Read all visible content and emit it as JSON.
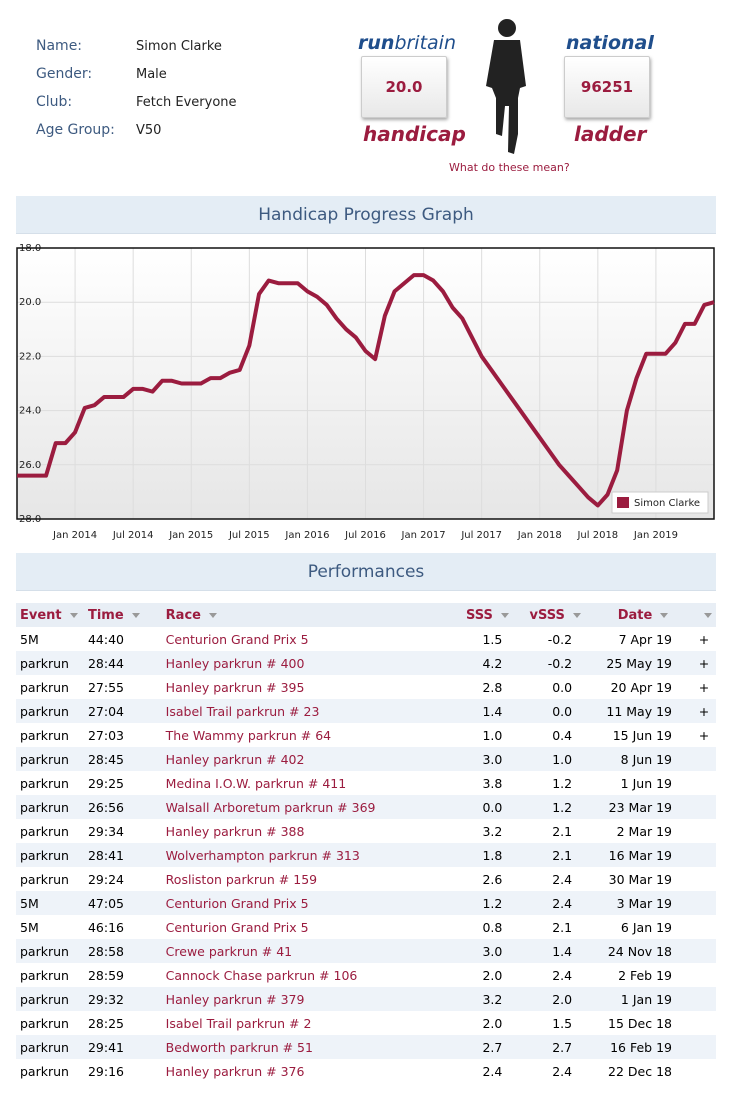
{
  "profile": {
    "fields": [
      {
        "label": "Name:",
        "value": "Simon Clarke"
      },
      {
        "label": "Gender:",
        "value": "Male"
      },
      {
        "label": "Club:",
        "value": "Fetch Everyone"
      },
      {
        "label": "Age Group:",
        "value": "V50"
      }
    ]
  },
  "badges": {
    "handicap": {
      "logo_a": "run",
      "logo_b": "britain",
      "value": "20.0",
      "caption": "handicap"
    },
    "ladder": {
      "logo": "national",
      "value": "96251",
      "caption": "ladder"
    },
    "help_link": "What do these mean?"
  },
  "graph_title": "Handicap Progress Graph",
  "chart_data": {
    "type": "line",
    "x": [
      "2013-07",
      "2013-08",
      "2013-09",
      "2013-10",
      "2013-11",
      "2013-12",
      "2014-01",
      "2014-02",
      "2014-03",
      "2014-04",
      "2014-05",
      "2014-06",
      "2014-07",
      "2014-08",
      "2014-09",
      "2014-10",
      "2014-11",
      "2014-12",
      "2015-01",
      "2015-02",
      "2015-03",
      "2015-04",
      "2015-05",
      "2015-06",
      "2015-07",
      "2015-08",
      "2015-09",
      "2015-10",
      "2015-11",
      "2015-12",
      "2016-01",
      "2016-02",
      "2016-03",
      "2016-04",
      "2016-05",
      "2016-06",
      "2016-07",
      "2016-08",
      "2016-09",
      "2016-10",
      "2016-11",
      "2016-12",
      "2017-01",
      "2017-02",
      "2017-03",
      "2017-04",
      "2017-05",
      "2017-06",
      "2017-07",
      "2017-08",
      "2017-09",
      "2017-10",
      "2017-11",
      "2017-12",
      "2018-01",
      "2018-02",
      "2018-03",
      "2018-04",
      "2018-05",
      "2018-06",
      "2018-07",
      "2018-08",
      "2018-09",
      "2018-10",
      "2018-11",
      "2018-12",
      "2019-01",
      "2019-02",
      "2019-03",
      "2019-04",
      "2019-05",
      "2019-06",
      "2019-07"
    ],
    "series": [
      {
        "name": "Simon Clarke",
        "color": "#9b1c3f",
        "values": [
          26.4,
          26.4,
          26.4,
          26.4,
          25.2,
          25.2,
          24.8,
          23.9,
          23.8,
          23.5,
          23.5,
          23.5,
          23.2,
          23.2,
          23.3,
          22.9,
          22.9,
          23.0,
          23.0,
          23.0,
          22.8,
          22.8,
          22.6,
          22.5,
          21.6,
          19.7,
          19.2,
          19.3,
          19.3,
          19.3,
          19.6,
          19.8,
          20.1,
          20.6,
          21.0,
          21.3,
          21.8,
          22.1,
          20.5,
          19.6,
          19.3,
          19.0,
          19.0,
          19.2,
          19.6,
          20.2,
          20.6,
          21.3,
          22.0,
          22.5,
          23.0,
          23.5,
          24.0,
          24.5,
          25.0,
          25.5,
          26.0,
          26.4,
          26.8,
          27.2,
          27.5,
          27.1,
          26.2,
          24.0,
          22.8,
          21.9,
          21.9,
          21.9,
          21.5,
          20.8,
          20.8,
          20.1,
          20.0
        ]
      }
    ],
    "xlim": [
      "2013-07",
      "2019-07"
    ],
    "xticks": [
      {
        "value": "2014-01",
        "label": "Jan 2014"
      },
      {
        "value": "2014-07",
        "label": "Jul 2014"
      },
      {
        "value": "2015-01",
        "label": "Jan 2015"
      },
      {
        "value": "2015-07",
        "label": "Jul 2015"
      },
      {
        "value": "2016-01",
        "label": "Jan 2016"
      },
      {
        "value": "2016-07",
        "label": "Jul 2016"
      },
      {
        "value": "2017-01",
        "label": "Jan 2017"
      },
      {
        "value": "2017-07",
        "label": "Jul 2017"
      },
      {
        "value": "2018-01",
        "label": "Jan 2018"
      },
      {
        "value": "2018-07",
        "label": "Jul 2018"
      },
      {
        "value": "2019-01",
        "label": "Jan 2019"
      }
    ],
    "ylim": [
      18,
      28
    ],
    "y_inverted": true,
    "yticks": [
      {
        "value": 18,
        "label": "18.0"
      },
      {
        "value": 20,
        "label": "20.0"
      },
      {
        "value": 22,
        "label": "22.0"
      },
      {
        "value": 24,
        "label": "24.0"
      },
      {
        "value": 26,
        "label": "26.0"
      },
      {
        "value": 28,
        "label": "28.0"
      }
    ],
    "grid": true,
    "legend": "bottom-right"
  },
  "performances_title": "Performances",
  "table": {
    "columns": [
      "Event",
      "Time",
      "Race",
      "SSS",
      "vSSS",
      "Date"
    ],
    "rows": [
      {
        "cells": [
          "5M",
          "44:40",
          "Centurion Grand Prix 5",
          "1.5",
          "-0.2",
          "7 Apr 19"
        ],
        "expand": "+"
      },
      {
        "cells": [
          "parkrun",
          "28:44",
          "Hanley parkrun # 400",
          "4.2",
          "-0.2",
          "25 May 19"
        ],
        "expand": "+"
      },
      {
        "cells": [
          "parkrun",
          "27:55",
          "Hanley parkrun # 395",
          "2.8",
          "0.0",
          "20 Apr 19"
        ],
        "expand": "+"
      },
      {
        "cells": [
          "parkrun",
          "27:04",
          "Isabel Trail parkrun # 23",
          "1.4",
          "0.0",
          "11 May 19"
        ],
        "expand": "+"
      },
      {
        "cells": [
          "parkrun",
          "27:03",
          "The Wammy parkrun # 64",
          "1.0",
          "0.4",
          "15 Jun 19"
        ],
        "expand": "+"
      },
      {
        "cells": [
          "parkrun",
          "28:45",
          "Hanley parkrun # 402",
          "3.0",
          "1.0",
          "8 Jun 19"
        ]
      },
      {
        "cells": [
          "parkrun",
          "29:25",
          "Medina I.O.W. parkrun # 411",
          "3.8",
          "1.2",
          "1 Jun 19"
        ]
      },
      {
        "cells": [
          "parkrun",
          "26:56",
          "Walsall Arboretum parkrun # 369",
          "0.0",
          "1.2",
          "23 Mar 19"
        ]
      },
      {
        "cells": [
          "parkrun",
          "29:34",
          "Hanley parkrun # 388",
          "3.2",
          "2.1",
          "2 Mar 19"
        ]
      },
      {
        "cells": [
          "parkrun",
          "28:41",
          "Wolverhampton parkrun # 313",
          "1.8",
          "2.1",
          "16 Mar 19"
        ]
      },
      {
        "cells": [
          "parkrun",
          "29:24",
          "Rosliston parkrun # 159",
          "2.6",
          "2.4",
          "30 Mar 19"
        ]
      },
      {
        "cells": [
          "5M",
          "47:05",
          "Centurion Grand Prix 5",
          "1.2",
          "2.4",
          "3 Mar 19"
        ]
      },
      {
        "cells": [
          "5M",
          "46:16",
          "Centurion Grand Prix 5",
          "0.8",
          "2.1",
          "6 Jan 19"
        ]
      },
      {
        "cells": [
          "parkrun",
          "28:58",
          "Crewe parkrun # 41",
          "3.0",
          "1.4",
          "24 Nov 18"
        ]
      },
      {
        "cells": [
          "parkrun",
          "28:59",
          "Cannock Chase parkrun # 106",
          "2.0",
          "2.4",
          "2 Feb 19"
        ]
      },
      {
        "cells": [
          "parkrun",
          "29:32",
          "Hanley parkrun # 379",
          "3.2",
          "2.0",
          "1 Jan 19"
        ]
      },
      {
        "cells": [
          "parkrun",
          "28:25",
          "Isabel Trail parkrun # 2",
          "2.0",
          "1.5",
          "15 Dec 18"
        ]
      },
      {
        "cells": [
          "parkrun",
          "29:41",
          "Bedworth parkrun # 51",
          "2.7",
          "2.7",
          "16 Feb 19"
        ]
      },
      {
        "cells": [
          "parkrun",
          "29:16",
          "Hanley parkrun # 376",
          "2.4",
          "2.4",
          "22 Dec 18"
        ]
      }
    ]
  }
}
